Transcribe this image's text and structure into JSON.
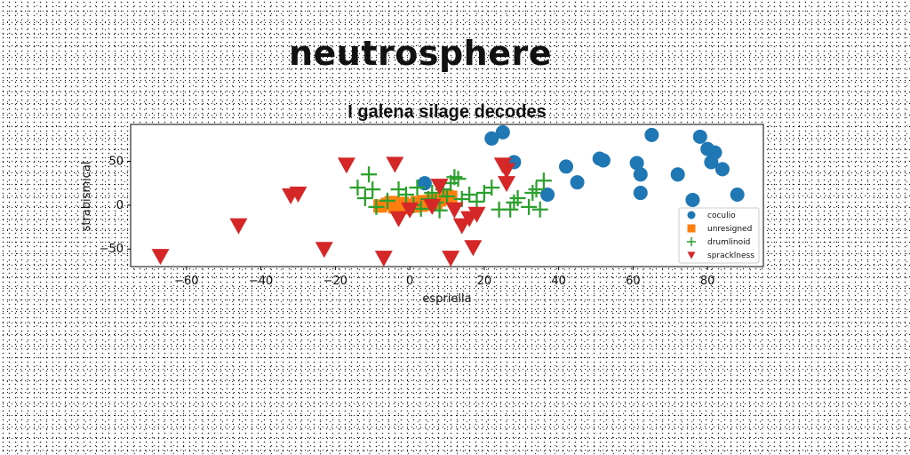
{
  "page": {
    "title": "neutrosphere"
  },
  "chart_data": {
    "type": "scatter",
    "title": "I galena silage decodes",
    "xlabel": "espriella",
    "ylabel": "strabismical",
    "xlim": [
      -75,
      95
    ],
    "ylim": [
      -70,
      92
    ],
    "xticks": [
      -60,
      -40,
      -20,
      0,
      20,
      40,
      60,
      80
    ],
    "yticks": [
      -50,
      0,
      50
    ],
    "grid": false,
    "legend_position": "lower right",
    "series": [
      {
        "name": "coculio",
        "marker": "circle",
        "color": "#1f77b4",
        "points": [
          [
            22,
            76
          ],
          [
            25,
            83
          ],
          [
            28,
            49
          ],
          [
            4,
            25
          ],
          [
            37,
            12
          ],
          [
            42,
            44
          ],
          [
            45,
            26
          ],
          [
            51,
            53
          ],
          [
            52,
            51
          ],
          [
            61,
            48
          ],
          [
            62,
            35
          ],
          [
            62,
            14
          ],
          [
            65,
            80
          ],
          [
            72,
            35
          ],
          [
            76,
            6
          ],
          [
            78,
            78
          ],
          [
            80,
            64
          ],
          [
            81,
            49
          ],
          [
            82,
            60
          ],
          [
            84,
            41
          ],
          [
            88,
            12
          ]
        ]
      },
      {
        "name": "unresigned",
        "marker": "square",
        "color": "#ff7f0e",
        "points": [
          [
            -8,
            -1
          ],
          [
            -6,
            1
          ],
          [
            -4,
            -2
          ],
          [
            -2,
            2
          ],
          [
            0,
            0
          ],
          [
            1,
            -1
          ],
          [
            2,
            3
          ],
          [
            3,
            0
          ],
          [
            4,
            4
          ],
          [
            5,
            1
          ],
          [
            6,
            5
          ],
          [
            7,
            3
          ],
          [
            8,
            6
          ],
          [
            9,
            8
          ],
          [
            10,
            10
          ],
          [
            11,
            9
          ],
          [
            -5,
            3
          ],
          [
            -1,
            -3
          ]
        ]
      },
      {
        "name": "drumlinoid",
        "marker": "plus",
        "color": "#2ca02c",
        "points": [
          [
            -14,
            20
          ],
          [
            -12,
            8
          ],
          [
            -10,
            18
          ],
          [
            -11,
            35
          ],
          [
            -9,
            -2
          ],
          [
            -6,
            5
          ],
          [
            -3,
            18
          ],
          [
            -1,
            12
          ],
          [
            1,
            0
          ],
          [
            2,
            20
          ],
          [
            3,
            -4
          ],
          [
            5,
            7
          ],
          [
            6,
            14
          ],
          [
            7,
            3
          ],
          [
            8,
            -6
          ],
          [
            9,
            18
          ],
          [
            10,
            10
          ],
          [
            11,
            25
          ],
          [
            12,
            32
          ],
          [
            13,
            30
          ],
          [
            14,
            7
          ],
          [
            16,
            12
          ],
          [
            18,
            4
          ],
          [
            20,
            14
          ],
          [
            22,
            20
          ],
          [
            24,
            -5
          ],
          [
            27,
            -5
          ],
          [
            28,
            3
          ],
          [
            29,
            8
          ],
          [
            32,
            -2
          ],
          [
            33,
            14
          ],
          [
            34,
            18
          ],
          [
            35,
            -5
          ],
          [
            36,
            28
          ]
        ]
      },
      {
        "name": "spracklness",
        "marker": "triangle_down",
        "color": "#d62728",
        "points": [
          [
            -67,
            -58
          ],
          [
            -46,
            -23
          ],
          [
            -32,
            11
          ],
          [
            -30,
            13
          ],
          [
            -17,
            46
          ],
          [
            -23,
            -50
          ],
          [
            -7,
            -60
          ],
          [
            -4,
            47
          ],
          [
            -3,
            -15
          ],
          [
            0,
            -5
          ],
          [
            6,
            -1
          ],
          [
            8,
            22
          ],
          [
            11,
            -60
          ],
          [
            12,
            -5
          ],
          [
            14,
            -23
          ],
          [
            16,
            -15
          ],
          [
            17,
            -48
          ],
          [
            18,
            -10
          ],
          [
            25,
            46
          ],
          [
            26,
            25
          ],
          [
            26,
            40
          ]
        ]
      }
    ]
  }
}
